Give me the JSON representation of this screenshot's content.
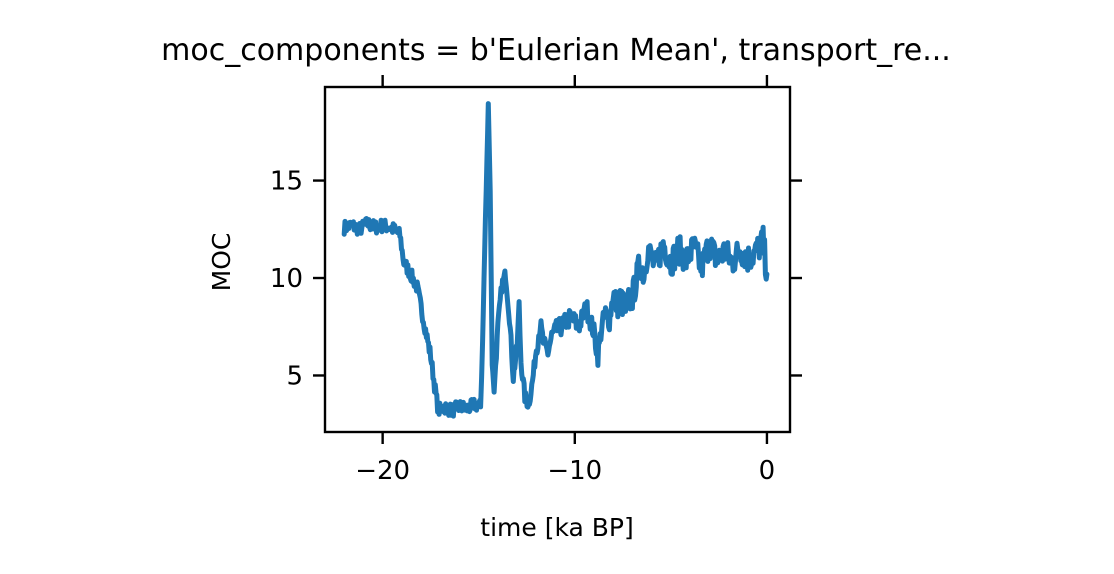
{
  "chart_data": {
    "type": "line",
    "title": "moc_components = b'Eulerian Mean', transport_re...",
    "xlabel": "time [ka BP]",
    "ylabel": "MOC",
    "xlim": [
      -23,
      1.2
    ],
    "ylim": [
      2.1,
      19.8
    ],
    "xticks": [
      -20,
      -10,
      0
    ],
    "xtick_labels": [
      "−20",
      "−10",
      "0"
    ],
    "yticks": [
      5,
      10,
      15
    ],
    "ytick_labels": [
      "5",
      "10",
      "15"
    ],
    "grid": false,
    "series_color": "#1f77b4",
    "series": [
      {
        "x": [
          -22.0,
          -21.6,
          -21.2,
          -20.8,
          -20.4,
          -20.0,
          -19.6,
          -19.3,
          -19.1,
          -18.9,
          -18.6,
          -18.2,
          -17.8,
          -17.5,
          -17.3,
          -17.1,
          -16.8,
          -16.4,
          -16.0,
          -15.6,
          -15.2,
          -14.9,
          -14.8,
          -14.65,
          -14.5,
          -14.4,
          -14.3,
          -14.2,
          -14.0,
          -13.8,
          -13.6,
          -13.4,
          -13.2,
          -13.0,
          -12.9,
          -12.8,
          -12.6,
          -12.4,
          -12.2,
          -12.0,
          -11.8,
          -11.6,
          -11.4,
          -11.2,
          -11.0,
          -10.6,
          -10.2,
          -9.8,
          -9.4,
          -9.0,
          -8.8,
          -8.6,
          -8.4,
          -8.2,
          -8.0,
          -7.8,
          -7.6,
          -7.4,
          -7.2,
          -7.0,
          -6.6,
          -6.4,
          -6.2,
          -5.8,
          -5.4,
          -5.0,
          -4.6,
          -4.2,
          -3.8,
          -3.4,
          -3.0,
          -2.6,
          -2.2,
          -1.8,
          -1.4,
          -1.0,
          -0.6,
          -0.2,
          0.0
        ],
        "y": [
          12.6,
          12.7,
          12.5,
          12.8,
          12.6,
          12.7,
          12.6,
          12.4,
          12.2,
          10.8,
          10.3,
          9.5,
          7.5,
          6.0,
          4.5,
          3.2,
          3.4,
          3.2,
          3.4,
          3.3,
          3.5,
          3.4,
          6.8,
          13.0,
          18.9,
          14.5,
          5.6,
          4.2,
          7.5,
          9.6,
          10.2,
          8.0,
          4.9,
          6.5,
          8.6,
          5.7,
          3.9,
          3.5,
          4.7,
          6.4,
          7.6,
          6.5,
          6.2,
          7.0,
          7.3,
          7.6,
          8.0,
          7.5,
          8.5,
          7.2,
          6.0,
          7.5,
          8.2,
          7.8,
          9.2,
          8.6,
          9.0,
          8.3,
          8.8,
          9.0,
          10.8,
          10.2,
          11.5,
          10.5,
          11.8,
          10.8,
          11.5,
          10.9,
          11.6,
          10.5,
          11.8,
          10.9,
          11.4,
          10.8,
          11.5,
          11.0,
          11.3,
          11.9,
          10.2
        ]
      }
    ]
  }
}
